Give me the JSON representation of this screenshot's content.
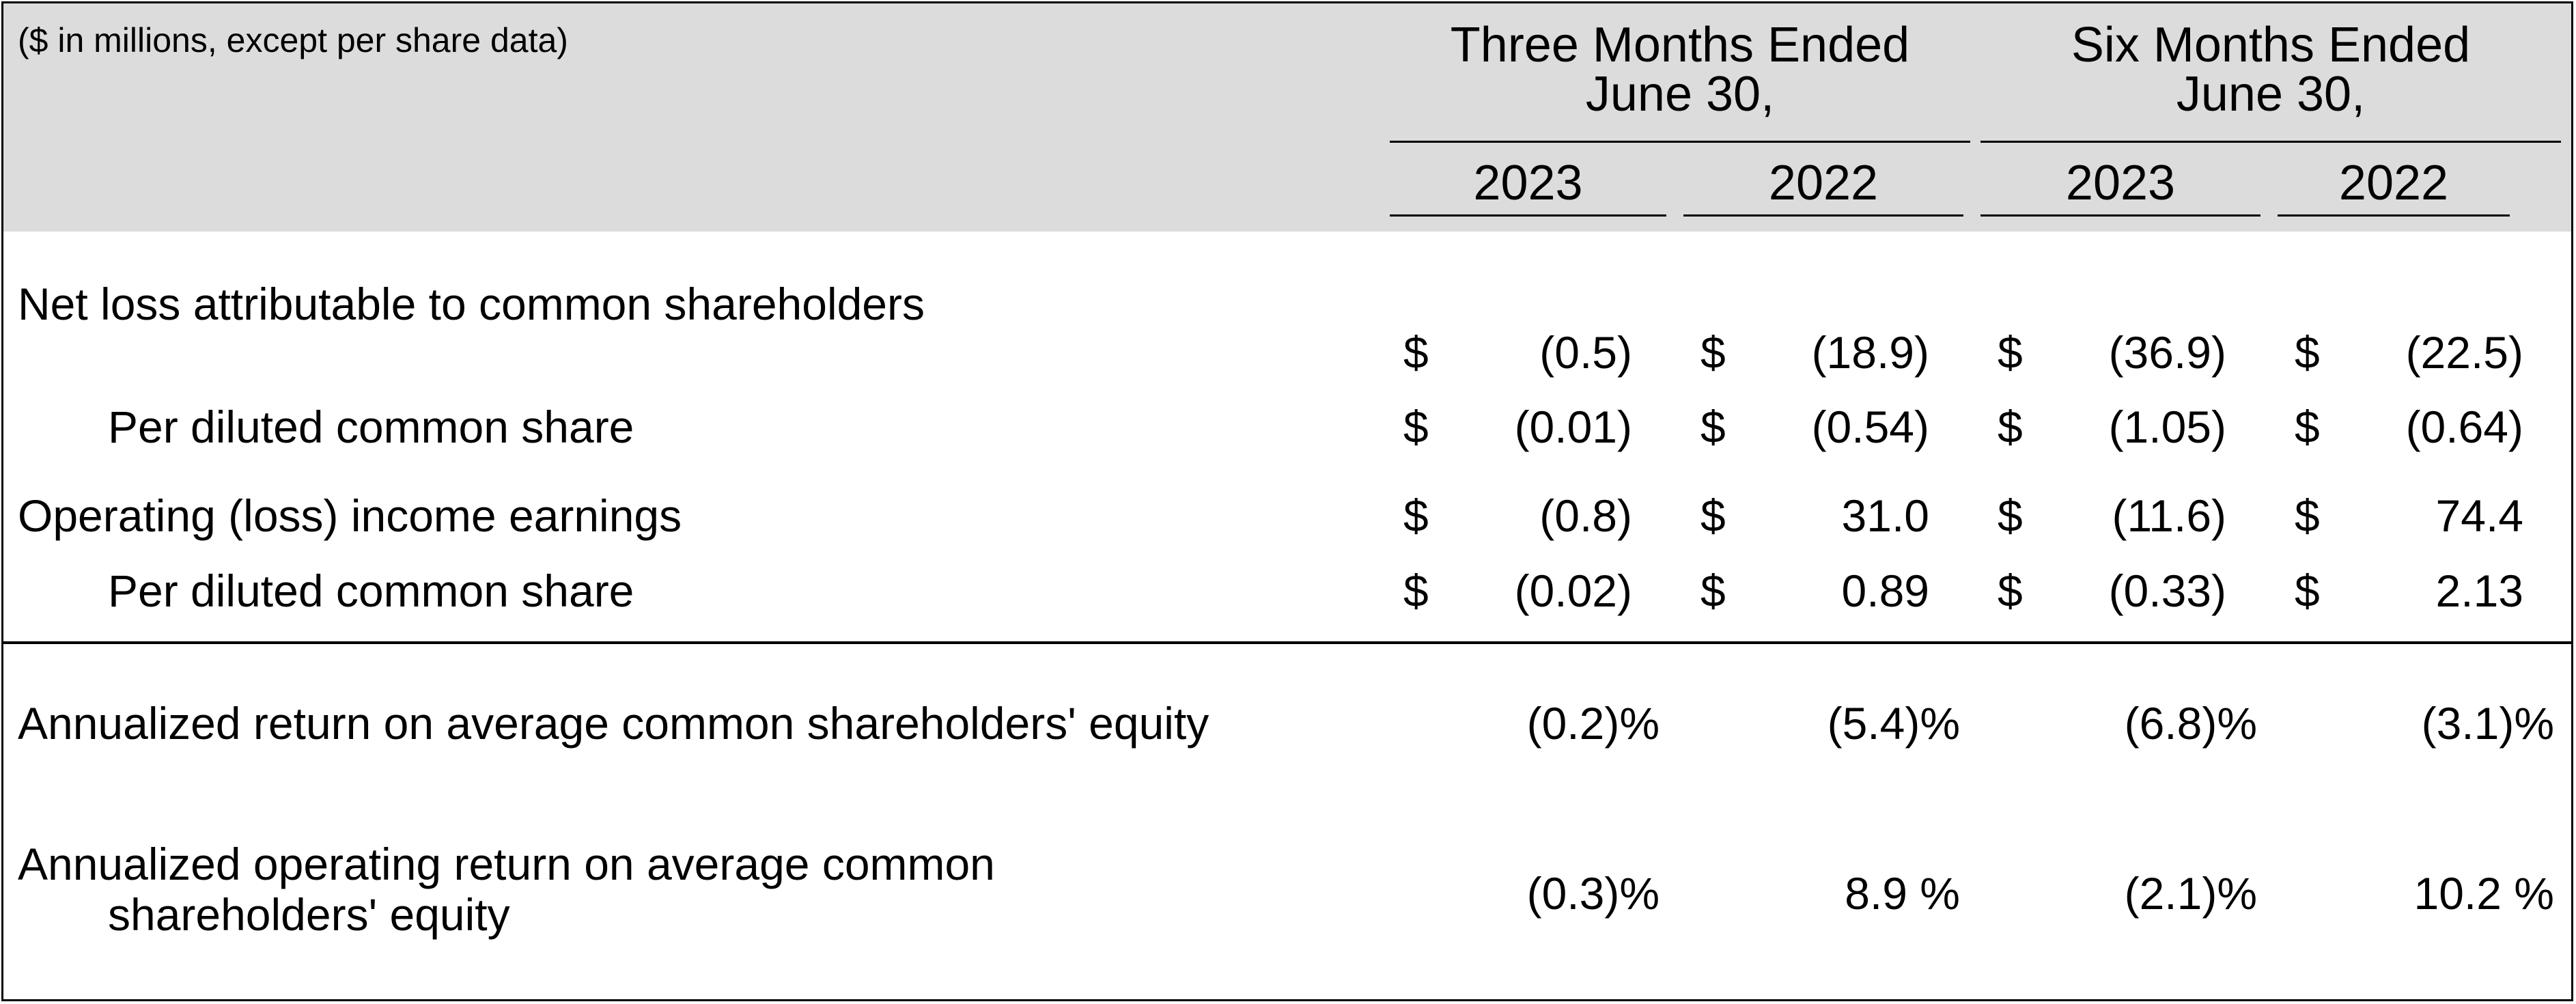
{
  "table": {
    "units_note": "($ in millions, except per share data)",
    "groups": [
      {
        "line1": "Three Months Ended",
        "line2": "June 30,"
      },
      {
        "line1": "Six Months Ended",
        "line2": "June 30,"
      }
    ],
    "years": [
      "2023",
      "2022",
      "2023",
      "2022"
    ],
    "currency_symbol": "$",
    "rows": [
      {
        "label": "Net loss attributable to common shareholders",
        "values": [
          "(0.5)",
          "(18.9)",
          "(36.9)",
          "(22.5)"
        ]
      },
      {
        "label": "Per diluted common share",
        "values": [
          "(0.01)",
          "(0.54)",
          "(1.05)",
          "(0.64)"
        ]
      },
      {
        "label": "Operating (loss) income earnings",
        "values": [
          "(0.8)",
          "31.0",
          "(11.6)",
          "74.4"
        ]
      },
      {
        "label": "Per diluted common share",
        "values": [
          "(0.02)",
          "0.89",
          "(0.33)",
          "2.13"
        ]
      }
    ],
    "ratio_rows": [
      {
        "label": "Annualized return on average common shareholders' equity",
        "values": [
          "(0.2)%",
          "(5.4)%",
          "(6.8)%",
          "(3.1)%"
        ]
      },
      {
        "label_line1": "Annualized operating return on average common",
        "label_line2": "shareholders' equity",
        "values": [
          "(0.3)%",
          "8.9 %",
          "(2.1)%",
          "10.2 %"
        ]
      }
    ]
  },
  "colors": {
    "header_background": "#dcdcdc",
    "text": "#000000",
    "rules": "#000000"
  }
}
